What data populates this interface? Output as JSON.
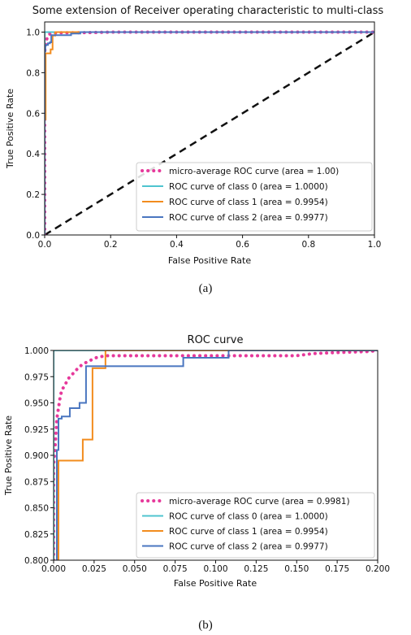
{
  "chart_data": [
    {
      "type": "line",
      "panel": "a",
      "title": "Some extension of Receiver operating characteristic to multi-class",
      "xlabel": "False Positive Rate",
      "ylabel": "True Positive Rate",
      "caption": "(a)",
      "xlim": [
        0.0,
        1.0
      ],
      "ylim": [
        0.0,
        1.05
      ],
      "xticks": [
        0.0,
        0.2,
        0.4,
        0.6,
        0.8,
        1.0
      ],
      "xtick_labels": [
        "0.0",
        "0.2",
        "0.4",
        "0.6",
        "0.8",
        "1.0"
      ],
      "yticks": [
        0.0,
        0.2,
        0.4,
        0.6,
        0.8,
        1.0
      ],
      "ytick_labels": [
        "0.0",
        "0.2",
        "0.4",
        "0.6",
        "0.8",
        "1.0"
      ],
      "grid": false,
      "legend_position": "lower-right",
      "series": [
        {
          "name": "micro-average ROC curve (area = 1.00)",
          "color": "#e6399b",
          "style": "dotted",
          "x": [
            0.0,
            0.0,
            0.002,
            0.005,
            0.01,
            0.015,
            0.025,
            0.04,
            0.06,
            0.1,
            0.15,
            0.2,
            1.0
          ],
          "y": [
            0.0,
            0.9,
            0.93,
            0.96,
            0.98,
            0.99,
            0.995,
            0.997,
            0.997,
            0.997,
            0.998,
            1.0,
            1.0
          ]
        },
        {
          "name": "ROC curve of class 0 (area = 1.0000)",
          "color": "#4fc4cf",
          "style": "solid",
          "x": [
            0.0,
            0.0,
            1.0
          ],
          "y": [
            0.0,
            1.0,
            1.0
          ]
        },
        {
          "name": "ROC curve of class 1 (area = 0.9954)",
          "color": "#f28c1e",
          "style": "solid",
          "x": [
            0.0,
            0.0,
            0.003,
            0.003,
            0.018,
            0.018,
            0.024,
            0.024,
            0.032,
            0.032,
            1.0
          ],
          "y": [
            0.0,
            0.57,
            0.57,
            0.895,
            0.895,
            0.915,
            0.915,
            0.983,
            0.983,
            1.0,
            1.0
          ]
        },
        {
          "name": "ROC curve of class 2 (area = 0.9977)",
          "color": "#4a76c0",
          "style": "solid",
          "x": [
            0.0,
            0.0,
            0.002,
            0.002,
            0.005,
            0.005,
            0.01,
            0.01,
            0.016,
            0.016,
            0.02,
            0.02,
            0.08,
            0.08,
            0.108,
            0.108,
            1.0
          ],
          "y": [
            0.0,
            0.905,
            0.905,
            0.935,
            0.935,
            0.937,
            0.937,
            0.945,
            0.945,
            0.95,
            0.95,
            0.985,
            0.985,
            0.993,
            0.993,
            1.0,
            1.0
          ]
        },
        {
          "name": "",
          "color": "#111111",
          "style": "dashed",
          "x": [
            0.0,
            1.0
          ],
          "y": [
            0.0,
            1.0
          ]
        }
      ]
    },
    {
      "type": "line",
      "panel": "b",
      "title": "ROC curve",
      "xlabel": "False Positive Rate",
      "ylabel": "True Positive Rate",
      "caption": "(b)",
      "xlim": [
        0.0,
        0.2
      ],
      "ylim": [
        0.8,
        1.0
      ],
      "xticks": [
        0.0,
        0.025,
        0.05,
        0.075,
        0.1,
        0.125,
        0.15,
        0.175,
        0.2
      ],
      "xtick_labels": [
        "0.000",
        "0.025",
        "0.050",
        "0.075",
        "0.100",
        "0.125",
        "0.150",
        "0.175",
        "0.200"
      ],
      "yticks": [
        0.8,
        0.825,
        0.85,
        0.875,
        0.9,
        0.925,
        0.95,
        0.975,
        1.0
      ],
      "ytick_labels": [
        "0.800",
        "0.825",
        "0.850",
        "0.875",
        "0.900",
        "0.925",
        "0.950",
        "0.975",
        "1.000"
      ],
      "grid": false,
      "legend_position": "lower-right",
      "series": [
        {
          "name": "micro-average ROC curve (area = 0.9981)",
          "color": "#e6399b",
          "style": "dotted",
          "x": [
            0.0,
            0.0,
            0.001,
            0.002,
            0.003,
            0.004,
            0.005,
            0.007,
            0.009,
            0.012,
            0.015,
            0.018,
            0.022,
            0.026,
            0.032,
            0.05,
            0.08,
            0.1,
            0.12,
            0.15,
            0.16,
            0.175,
            0.195,
            0.2
          ],
          "y": [
            0.8,
            0.89,
            0.91,
            0.935,
            0.945,
            0.955,
            0.962,
            0.967,
            0.973,
            0.978,
            0.983,
            0.987,
            0.99,
            0.993,
            0.995,
            0.995,
            0.995,
            0.995,
            0.995,
            0.995,
            0.997,
            0.998,
            0.999,
            1.0
          ]
        },
        {
          "name": "ROC curve of class 0 (area = 1.0000)",
          "color": "#4fc4cf",
          "style": "solid",
          "x": [
            0.0,
            0.0,
            0.2
          ],
          "y": [
            0.8,
            1.0,
            1.0
          ]
        },
        {
          "name": "ROC curve of class 1 (area = 0.9954)",
          "color": "#f28c1e",
          "style": "solid",
          "x": [
            0.003,
            0.003,
            0.018,
            0.018,
            0.024,
            0.024,
            0.032,
            0.032,
            0.2
          ],
          "y": [
            0.8,
            0.895,
            0.895,
            0.915,
            0.915,
            0.983,
            0.983,
            1.0,
            1.0
          ]
        },
        {
          "name": "ROC curve of class 2 (area = 0.9977)",
          "color": "#4a76c0",
          "style": "solid",
          "x": [
            0.002,
            0.002,
            0.003,
            0.003,
            0.005,
            0.005,
            0.01,
            0.01,
            0.016,
            0.016,
            0.02,
            0.02,
            0.08,
            0.08,
            0.108,
            0.108,
            0.2
          ],
          "y": [
            0.8,
            0.905,
            0.905,
            0.935,
            0.935,
            0.937,
            0.937,
            0.945,
            0.945,
            0.95,
            0.95,
            0.985,
            0.985,
            0.993,
            0.993,
            1.0,
            1.0
          ]
        }
      ]
    }
  ]
}
